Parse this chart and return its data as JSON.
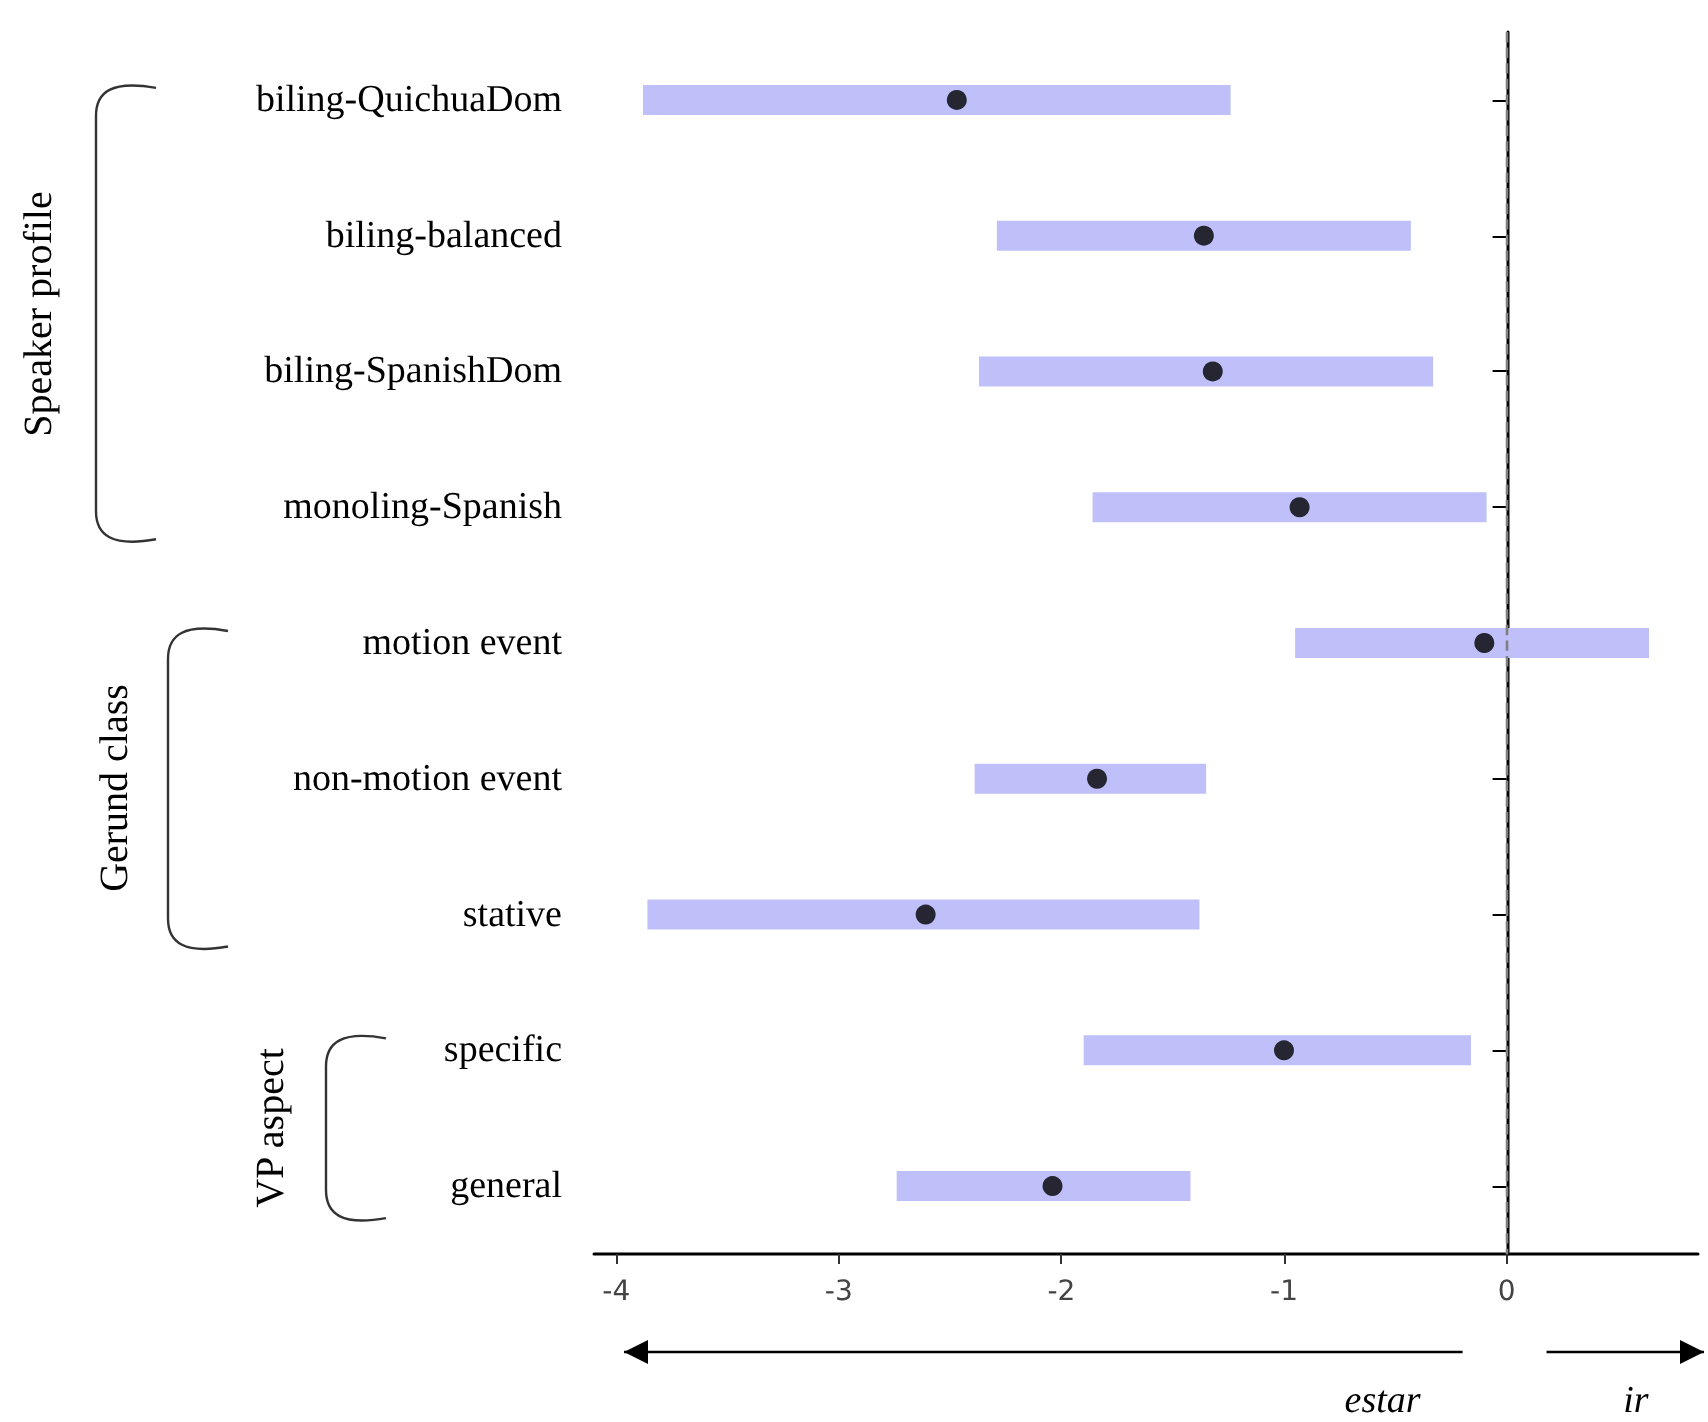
{
  "chart_data": {
    "type": "bar",
    "orientation": "horizontal",
    "categories": [
      "biling-QuichuaDom",
      "biling-balanced",
      "biling-SpanishDom",
      "monoling-Spanish",
      "motion event",
      "non-motion event",
      "stative",
      "specific",
      "general"
    ],
    "series": [
      {
        "type": "bar",
        "color": "#bfbffa",
        "base": [
          -3.88,
          -2.29,
          -2.37,
          -1.86,
          -0.95,
          -2.39,
          -3.86,
          -1.9,
          -2.74
        ],
        "values": [
          2.64,
          1.86,
          2.04,
          1.77,
          1.59,
          1.04,
          2.48,
          1.74,
          1.32
        ]
      },
      {
        "type": "scatter",
        "color": "#000000",
        "values": [
          -2.47,
          -1.36,
          -1.32,
          -0.93,
          -0.1,
          -1.84,
          -2.61,
          -1.0,
          -2.04
        ]
      }
    ],
    "marker": "circle",
    "xlim": [
      -4.1,
      0.86
    ],
    "xticks": [
      -4,
      -3,
      -2,
      -1,
      0
    ],
    "ref_lines": [
      {
        "axis": "x",
        "value": 0,
        "color": "#808080",
        "line_style": "dashed"
      }
    ],
    "annotations": [
      "Speaker profile",
      "Gerund class",
      "VP aspect",
      "estar",
      "ir"
    ],
    "grid": false
  }
}
